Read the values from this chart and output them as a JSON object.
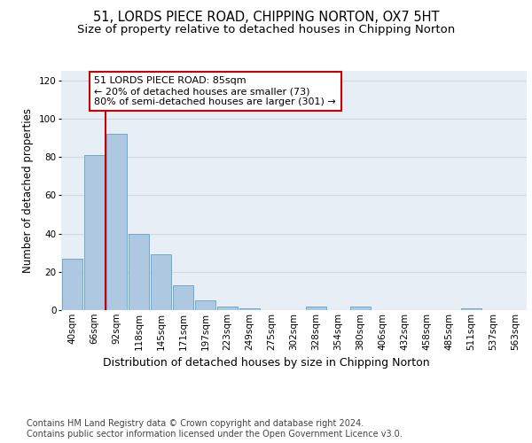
{
  "title_line1": "51, LORDS PIECE ROAD, CHIPPING NORTON, OX7 5HT",
  "title_line2": "Size of property relative to detached houses in Chipping Norton",
  "xlabel": "Distribution of detached houses by size in Chipping Norton",
  "ylabel": "Number of detached properties",
  "categories": [
    "40sqm",
    "66sqm",
    "92sqm",
    "118sqm",
    "145sqm",
    "171sqm",
    "197sqm",
    "223sqm",
    "249sqm",
    "275sqm",
    "302sqm",
    "328sqm",
    "354sqm",
    "380sqm",
    "406sqm",
    "432sqm",
    "458sqm",
    "485sqm",
    "511sqm",
    "537sqm",
    "563sqm"
  ],
  "values": [
    27,
    81,
    92,
    40,
    29,
    13,
    5,
    2,
    1,
    0,
    0,
    2,
    0,
    2,
    0,
    0,
    0,
    0,
    1,
    0,
    0
  ],
  "bar_color": "#adc8e0",
  "bar_edge_color": "#6aaad4",
  "vline_x": 1.5,
  "vline_color": "#cc0000",
  "annotation_text": "51 LORDS PIECE ROAD: 85sqm\n← 20% of detached houses are smaller (73)\n80% of semi-detached houses are larger (301) →",
  "annotation_box_color": "#ffffff",
  "annotation_box_edge_color": "#cc0000",
  "ylim": [
    0,
    125
  ],
  "yticks": [
    0,
    20,
    40,
    60,
    80,
    100,
    120
  ],
  "grid_color": "#d0d8e4",
  "bg_color": "#e8eef5",
  "footer_text": "Contains HM Land Registry data © Crown copyright and database right 2024.\nContains public sector information licensed under the Open Government Licence v3.0.",
  "title_fontsize": 10.5,
  "subtitle_fontsize": 9.5,
  "tick_fontsize": 7.5,
  "ylabel_fontsize": 8.5,
  "xlabel_fontsize": 9,
  "footer_fontsize": 7,
  "annotation_fontsize": 8
}
